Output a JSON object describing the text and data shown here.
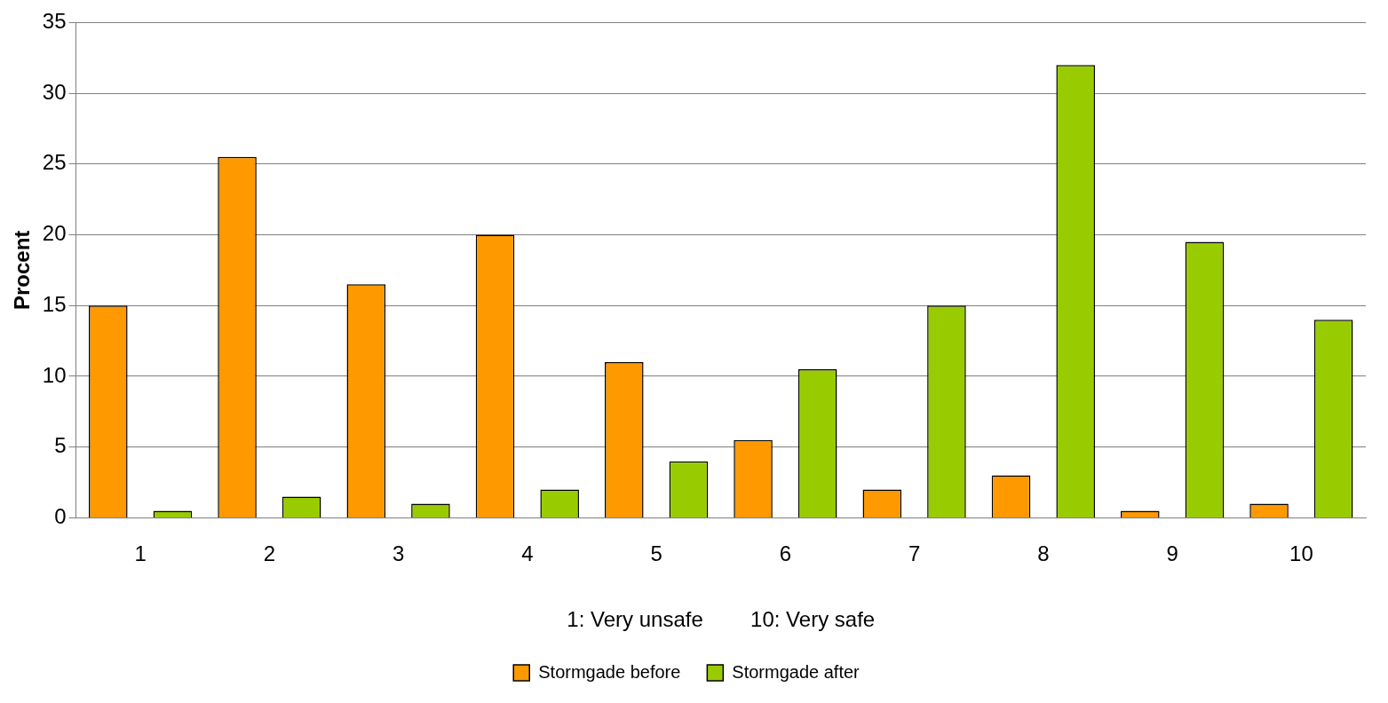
{
  "chart_data": {
    "type": "bar",
    "xlabel": "1: Very unsafe        10: Very safe",
    "ylabel": "Procent",
    "categories": [
      "1",
      "2",
      "3",
      "4",
      "5",
      "6",
      "7",
      "8",
      "9",
      "10"
    ],
    "series": [
      {
        "name": "Stormgade before",
        "color": "#ff9900",
        "values": [
          15,
          25.5,
          16.5,
          20,
          11,
          5.5,
          2,
          3,
          0.5,
          1
        ]
      },
      {
        "name": "Stormgade after",
        "color": "#99cc00",
        "values": [
          0.5,
          1.5,
          1,
          2,
          4,
          10.5,
          15,
          32,
          19.5,
          14
        ]
      }
    ],
    "ylim": [
      0,
      35
    ],
    "yticks": [
      0,
      5,
      10,
      15,
      20,
      25,
      30,
      35
    ],
    "grid": "y",
    "legend": "bottom"
  }
}
